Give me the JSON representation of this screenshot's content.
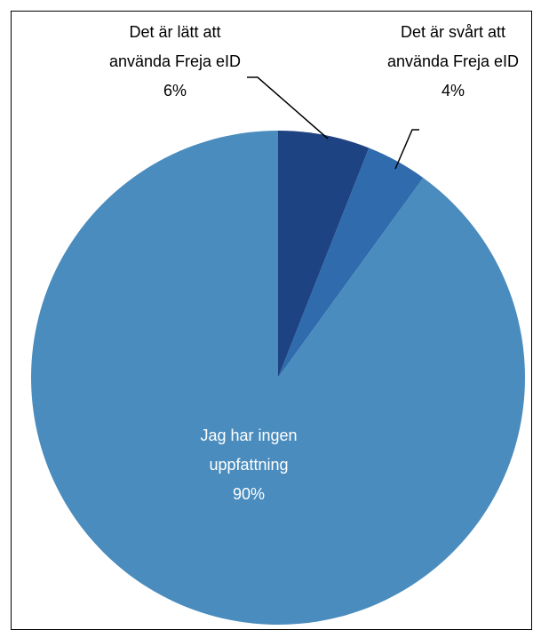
{
  "chart_data": {
    "type": "pie",
    "categories": [
      "Det är lätt att använda Freja eID",
      "Det är svårt att använda Freja eID",
      "Jag har ingen uppfattning"
    ],
    "values": [
      6,
      4,
      90
    ],
    "value_labels": [
      "6%",
      "4%",
      "90%"
    ],
    "colors": [
      "#1e4382",
      "#2f6bad",
      "#4a8cbe"
    ]
  }
}
